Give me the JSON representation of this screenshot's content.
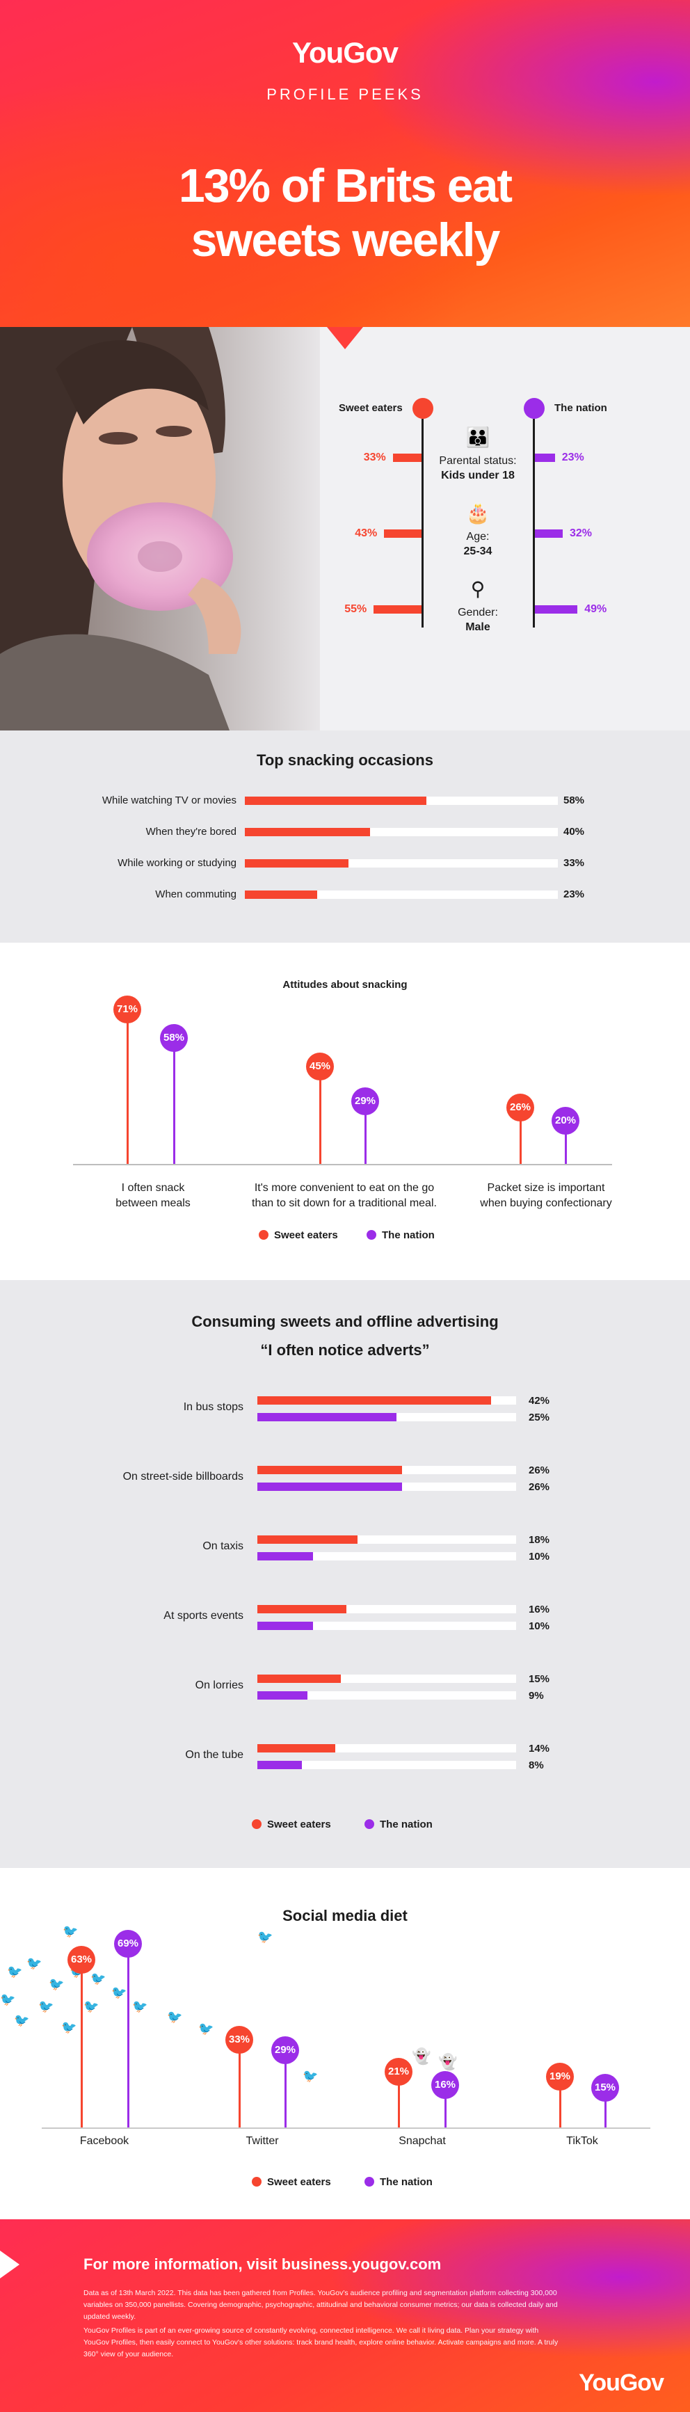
{
  "colors": {
    "sweet": "#f6452f",
    "nation": "#9b2de8",
    "text": "#1c1c1c"
  },
  "brand": {
    "logo": "YouGov",
    "series_label": "PROFILE PEEKS"
  },
  "hero": {
    "headline_line1": "13% of Brits eat",
    "headline_line2": "sweets weekly"
  },
  "profile": {
    "legend_sweet": "Sweet eaters",
    "legend_nation": "The nation",
    "rows": [
      {
        "icon": "family-icon",
        "label": "Parental status:",
        "value": "Kids under 18",
        "sweet": 33,
        "nation": 23,
        "sweet_label": "33%",
        "nation_label": "23%"
      },
      {
        "icon": "cake-icon",
        "label": "Age:",
        "value": "25-34",
        "sweet": 43,
        "nation": 32,
        "sweet_label": "43%",
        "nation_label": "32%"
      },
      {
        "icon": "gender-icon",
        "label": "Gender:",
        "value": "Male",
        "sweet": 55,
        "nation": 49,
        "sweet_label": "55%",
        "nation_label": "49%"
      }
    ]
  },
  "chart_data": [
    {
      "type": "bar",
      "title": "Top snacking occasions",
      "categories": [
        "While watching TV or movies",
        "When they're bored",
        "While working or studying",
        "When commuting"
      ],
      "values": [
        58,
        40,
        33,
        23
      ],
      "value_labels": [
        "58%",
        "40%",
        "33%",
        "23%"
      ],
      "xlim": [
        0,
        100
      ]
    },
    {
      "type": "lollipop",
      "title": "Attitudes about snacking",
      "categories": [
        "I often snack between meals",
        "It's more convenient to eat on the go than to sit down for a traditional meal.",
        "Packet size is important when buying confectionary"
      ],
      "series": [
        {
          "name": "Sweet eaters",
          "values": [
            71,
            45,
            26
          ],
          "value_labels": [
            "71%",
            "45%",
            "26%"
          ]
        },
        {
          "name": "The nation",
          "values": [
            58,
            29,
            20
          ],
          "value_labels": [
            "58%",
            "29%",
            "20%"
          ]
        }
      ],
      "label_lines": [
        [
          "I often snack",
          "between meals"
        ],
        [
          "It's more convenient to eat on the go",
          "than to sit down for a traditional meal."
        ],
        [
          "Packet size is important",
          "when buying confectionary"
        ]
      ],
      "ylim": [
        0,
        80
      ],
      "legend": "bottom-center"
    },
    {
      "type": "bar",
      "title": "Consuming sweets and offline advertising",
      "subtitle": "“I often notice adverts”",
      "categories": [
        "In bus stops",
        "On street-side billboards",
        "On taxis",
        "At sports events",
        "On lorries",
        "On the tube"
      ],
      "series": [
        {
          "name": "Sweet eaters",
          "values": [
            42,
            26,
            18,
            16,
            15,
            14
          ],
          "value_labels": [
            "42%",
            "26%",
            "18%",
            "16%",
            "15%",
            "14%"
          ]
        },
        {
          "name": "The nation",
          "values": [
            25,
            26,
            10,
            10,
            9,
            8
          ],
          "value_labels": [
            "25%",
            "26%",
            "10%",
            "10%",
            "9%",
            "8%"
          ]
        }
      ],
      "xlim": [
        0,
        100
      ],
      "legend": "bottom-center"
    },
    {
      "type": "lollipop",
      "title": "Social media diet",
      "categories": [
        "Facebook",
        "Twitter",
        "Snapchat",
        "TikTok"
      ],
      "series": [
        {
          "name": "Sweet eaters",
          "values": [
            63,
            33,
            21,
            19
          ],
          "value_labels": [
            "63%",
            "33%",
            "21%",
            "19%"
          ]
        },
        {
          "name": "The nation",
          "values": [
            69,
            29,
            16,
            15
          ],
          "value_labels": [
            "69%",
            "29%",
            "16%",
            "15%"
          ]
        }
      ],
      "ylim": [
        0,
        75
      ],
      "legend": "bottom-center"
    }
  ],
  "legend": {
    "sweet": "Sweet eaters",
    "nation": "The nation"
  },
  "footer": {
    "cta": "For more information, visit business.yougov.com",
    "para1": "Data as of 13th March 2022. This data has been gathered from Profiles. YouGov's audience profiling and segmentation platform collecting 300,000 variables on 350,000 panellists. Covering demographic, psychographic, attitudinal and behavioral consumer metrics; our data is collected daily and updated weekly.",
    "para2": "YouGov Profiles is part of an ever-growing source of constantly evolving, connected intelligence. We call it living data. Plan your strategy with YouGov Profiles, then easily connect to YouGov's other solutions: track brand health, explore online behavior. Activate campaigns and more. A truly 360° view of your audience.",
    "logo": "YouGov"
  }
}
